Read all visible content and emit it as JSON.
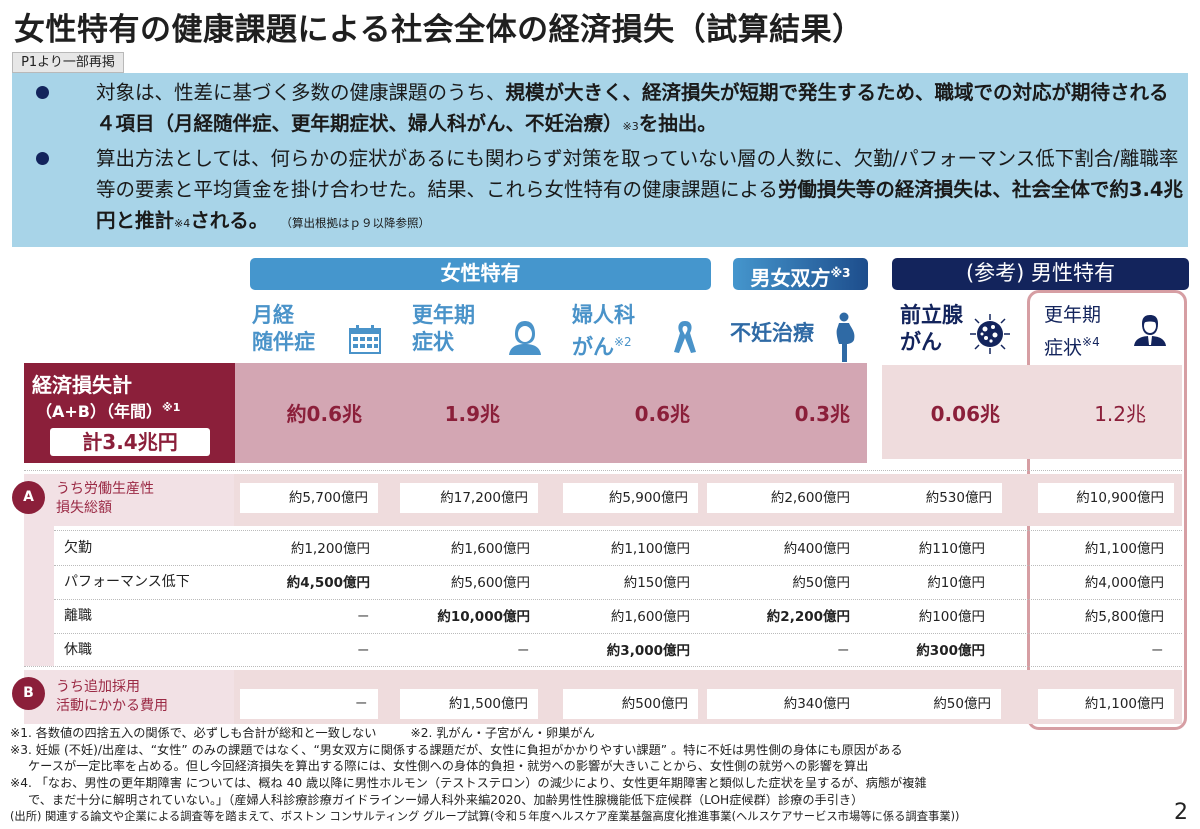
{
  "title": "女性特有の健康課題による社会全体の経済損失（試算結果）",
  "repost_tag": "P1より一部再掲",
  "summary": {
    "bullet1": {
      "part1": "対象は、性差に基づく多数の健康課題のうち、",
      "part2_bold": "規模が大きく、経済損失が短期で発生するため、職域での対応が期待される４項目（月経随伴症、更年期症状、婦人科がん、不妊治療）",
      "sup": "※3",
      "part3_bold": "を抽出。"
    },
    "bullet2": {
      "part1": "算出方法としては、何らかの症状があるにも関わらず対策を取っていない層の人数に、欠勤/パフォーマンス低下割合/離職率等の要素と平均賃金を掛け合わせた。結果、これら女性特有の健康課題による",
      "part2_bold": "労働損失等の経済損失は、社会全体で約3.4兆円と推計",
      "sup": "※4",
      "part3_bold": "される。",
      "note": "（算出根拠はｐ９以降参照）"
    }
  },
  "groups": {
    "female": "女性特有",
    "both": "男女双方",
    "both_sup": "※3",
    "male": "(参考) 男性特有"
  },
  "columns": [
    {
      "line1": "月経",
      "line2": "随伴症",
      "sup": "",
      "icon": "calendar-icon"
    },
    {
      "line1": "更年期",
      "line2": "症状",
      "sup": "",
      "icon": "woman-icon"
    },
    {
      "line1": "婦人科",
      "line2": "がん",
      "sup": "※2",
      "icon": "ribbon-icon"
    },
    {
      "line1": "不妊治療",
      "line2": "",
      "sup": "",
      "icon": "pregnant-icon"
    },
    {
      "line1": "前立腺",
      "line2": "がん",
      "sup": "",
      "icon": "cancer-cell-icon"
    },
    {
      "line1": "更年期",
      "line2": "症状",
      "sup": "※4",
      "icon": "man-icon"
    }
  ],
  "total": {
    "label1": "経済損失計",
    "label2": "（A+B）（年間）",
    "label2_sup": "※1",
    "sum": "計3.4兆円",
    "values": [
      "約0.6兆",
      "1.9兆",
      "0.6兆",
      "0.3兆",
      "0.06兆",
      "1.2兆"
    ]
  },
  "section_a": {
    "badge": "A",
    "label_line1": "うち労働生産性",
    "label_line2": "損失総額",
    "values": [
      "約5,700億円",
      "約17,200億円",
      "約5,900億円",
      "約2,600億円",
      "約530億円",
      "約10,900億円"
    ],
    "rows": [
      {
        "label": "欠勤",
        "values": [
          "約1,200億円",
          "約1,600億円",
          "約1,100億円",
          "約400億円",
          "約110億円",
          "約1,100億円"
        ],
        "bold": [
          false,
          false,
          false,
          false,
          false,
          false
        ]
      },
      {
        "label": "パフォーマンス低下",
        "values": [
          "約4,500億円",
          "約5,600億円",
          "約150億円",
          "約50億円",
          "約10億円",
          "約4,000億円"
        ],
        "bold": [
          true,
          false,
          false,
          false,
          false,
          false
        ]
      },
      {
        "label": "離職",
        "values": [
          "－",
          "約10,000億円",
          "約1,600億円",
          "約2,200億円",
          "約100億円",
          "約5,800億円"
        ],
        "bold": [
          false,
          true,
          false,
          true,
          false,
          false
        ]
      },
      {
        "label": "休職",
        "values": [
          "－",
          "－",
          "約3,000億円",
          "－",
          "約300億円",
          "－"
        ],
        "bold": [
          false,
          false,
          true,
          false,
          true,
          false
        ]
      }
    ]
  },
  "section_b": {
    "badge": "B",
    "label_line1": "うち追加採用",
    "label_line2": "活動にかかる費用",
    "values": [
      "－",
      "約1,500億円",
      "約500億円",
      "約340億円",
      "約50億円",
      "約1,100億円"
    ]
  },
  "notes": {
    "n1": "※1. 各数値の四捨五入の関係で、必ずしも合計が総和と一致しない",
    "n2": "※2. 乳がん・子宮がん・卵巣がん",
    "n3a": "※3. 妊娠 (不妊)/出産は、“女性” のみの課題ではなく、“男女双方に関係する課題だが、女性に負担がかかりやすい課題” 。特に不妊は男性側の身体にも原因がある",
    "n3b": "ケースが一定比率を占める。但し今回経済損失を算出する際には、女性側への身体的負担・就労への影響が大きいことから、女性側の就労への影響を算出",
    "n4a": "※4. 「なお、男性の更年期障害 については、概ね 40 歳以降に男性ホルモン（テストステロン）の減少により、女性更年期障害と類似した症状を呈するが、病態が複雑",
    "n4b": "で、まだ十分に解明されていない。」（産婦人科診療診療ガイドラインー婦人科外来編2020、加齢男性性腺機能低下症候群（LOH症候群）診療の手引き）",
    "source": "(出所) 関連する論文や企業による調査等を踏まえて、ボストン コンサルティング グループ試算(令和５年度ヘルスケア産業基盤高度化推進事業(ヘルスケアサービス市場等に係る調査事業))"
  },
  "page_number": "2",
  "colors": {
    "accent_red": "#8b1f3a",
    "light_blue": "#4596cd",
    "navy": "#13245c",
    "summary_bg": "#a8d4e8"
  }
}
